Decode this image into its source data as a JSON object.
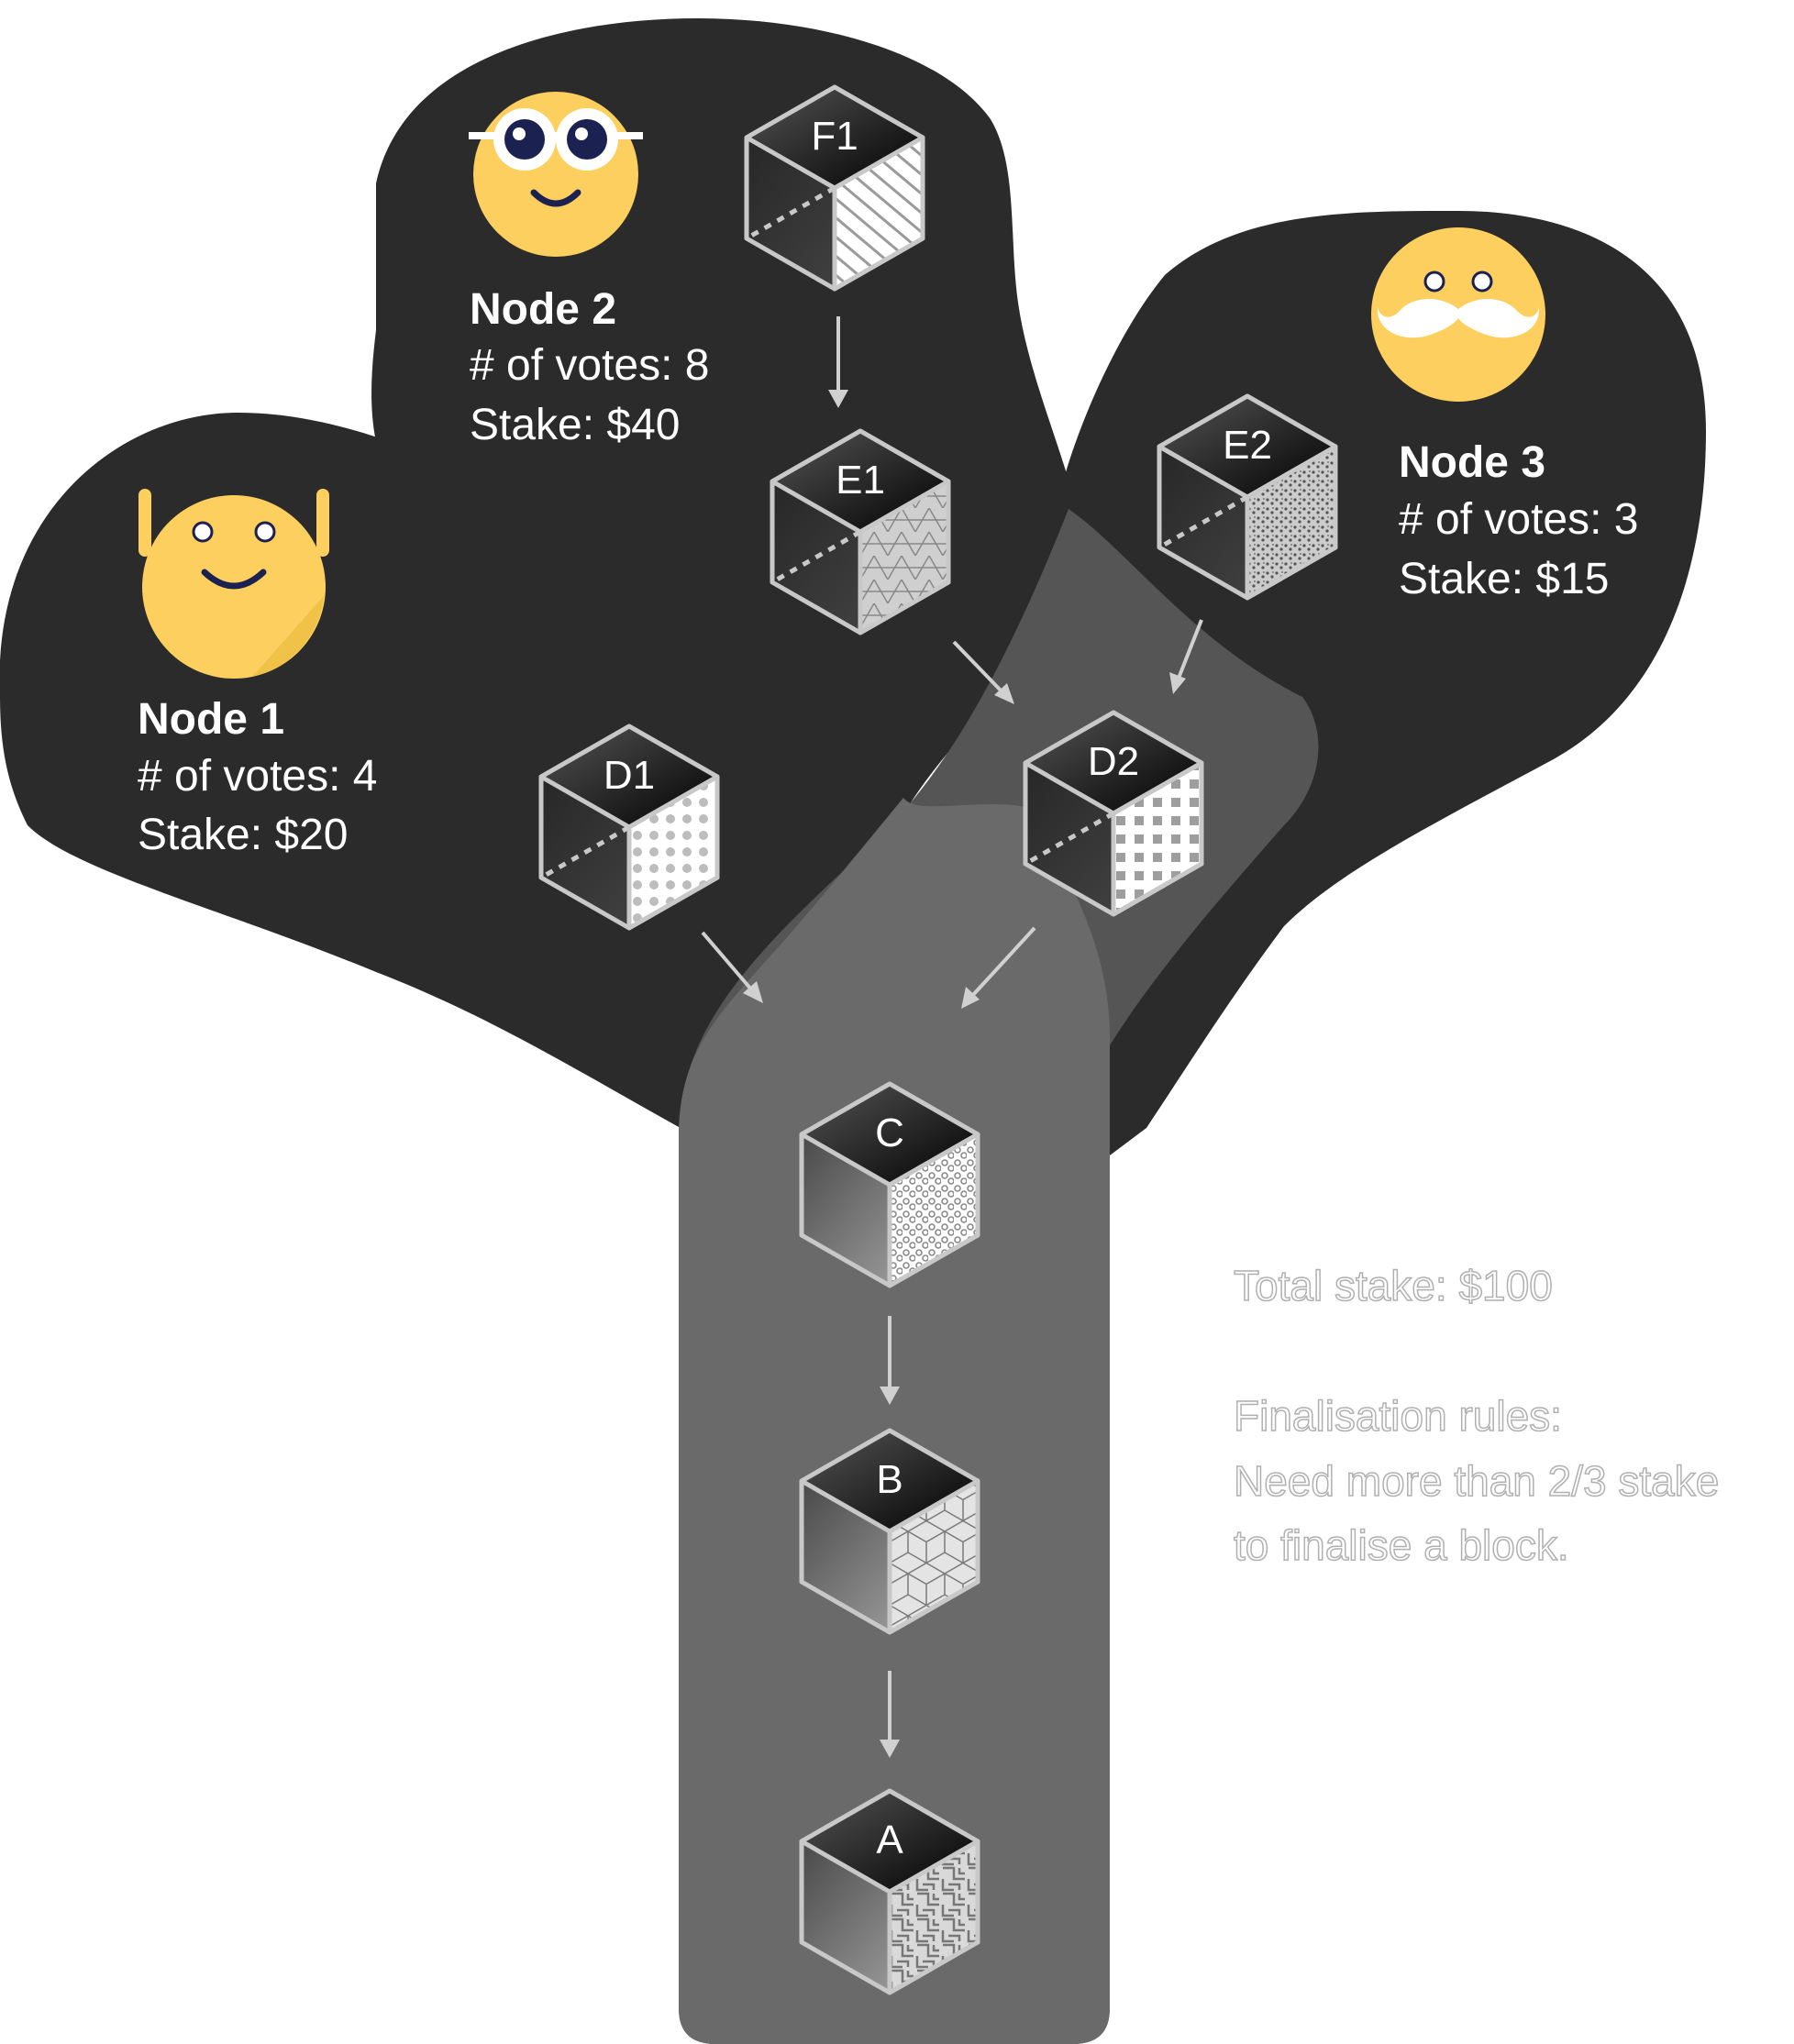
{
  "nodes": [
    {
      "title": "Node 1",
      "votes": "# of votes: 4",
      "stake": "Stake: $20",
      "face": "arms-up-face-icon"
    },
    {
      "title": "Node 2",
      "votes": "# of votes: 8",
      "stake": "Stake: $40",
      "face": "sunglasses-face-icon"
    },
    {
      "title": "Node 3",
      "votes": "# of votes: 3",
      "stake": "Stake: $15",
      "face": "mustache-face-icon"
    }
  ],
  "blocks": {
    "F1": "F1",
    "E1": "E1",
    "E2": "E2",
    "D1": "D1",
    "D2": "D2",
    "C": "C",
    "B": "B",
    "A": "A"
  },
  "info": {
    "total_stake": "Total stake: $100",
    "rules_title": "Finalisation rules:",
    "rules_line1": "Need more than 2/3 stake",
    "rules_line2": "to finalise a block."
  },
  "colors": {
    "branch_dark": "#2b2b2b",
    "trunk_mid": "#555555",
    "trunk_light": "#6a6a6a",
    "face_yellow": "#fccf5e",
    "block_outline": "#c8c8c8",
    "text_white": "#ffffff"
  }
}
